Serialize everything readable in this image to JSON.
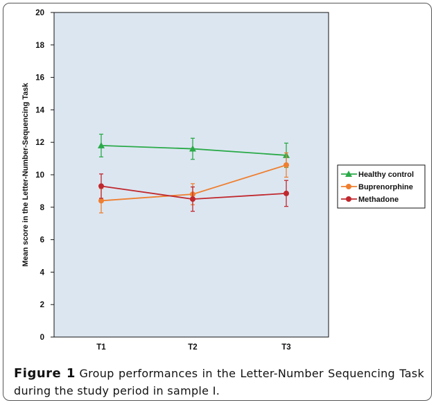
{
  "chart_data": {
    "type": "line",
    "categories": [
      "T1",
      "T2",
      "T3"
    ],
    "ylabel": "Mean score in the Letter-Number-Sequencing Task",
    "xlabel": "",
    "ylim": [
      0,
      20
    ],
    "yticks": [
      0,
      2,
      4,
      6,
      8,
      10,
      12,
      14,
      16,
      18,
      20
    ],
    "grid": false,
    "legend_position": "right",
    "plot_background": "#dce6f1",
    "series": [
      {
        "name": "Healthy control",
        "color": "#2aaa48",
        "marker": "triangle",
        "values": [
          11.8,
          11.6,
          11.2
        ],
        "error": [
          0.7,
          0.65,
          0.75
        ]
      },
      {
        "name": "Buprenorphine",
        "color": "#ef7f2f",
        "marker": "circle",
        "values": [
          8.4,
          8.8,
          10.6
        ],
        "error": [
          0.75,
          0.65,
          0.75
        ]
      },
      {
        "name": "Methadone",
        "color": "#c0282d",
        "marker": "circle",
        "values": [
          9.3,
          8.5,
          8.85
        ],
        "error": [
          0.75,
          0.75,
          0.8
        ]
      }
    ]
  },
  "caption": {
    "label": "Figure 1",
    "text": "Group performances in the Letter-Number Sequencing Task during the study period in sample I."
  }
}
